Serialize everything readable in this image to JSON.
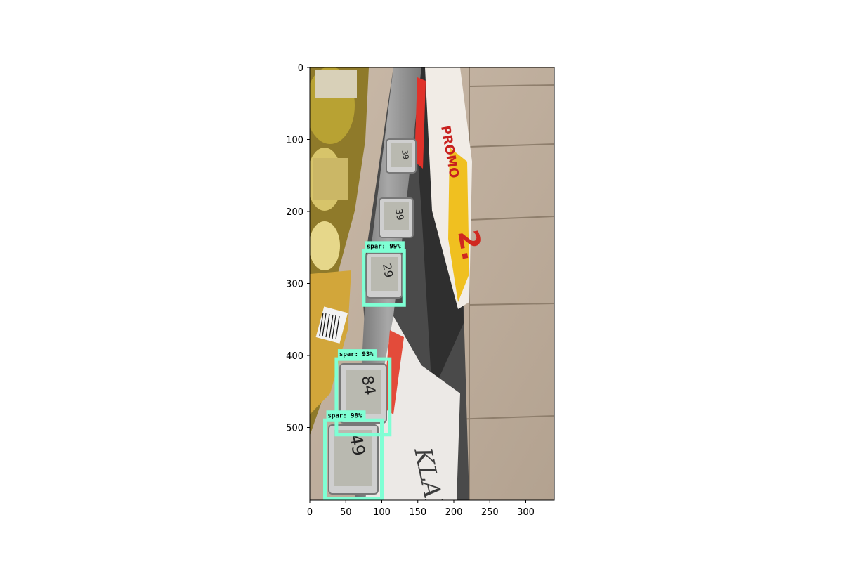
{
  "chart_data": {
    "type": "image",
    "x_ticks": [
      "0",
      "50",
      "100",
      "150",
      "200",
      "250",
      "300"
    ],
    "y_ticks": [
      "0",
      "100",
      "200",
      "300",
      "400",
      "500"
    ],
    "xlim": [
      0,
      340
    ],
    "ylim": [
      600,
      0
    ],
    "box_color": "#7fffd4",
    "detections": [
      {
        "label": "spar: 99%",
        "xmin": 75,
        "ymin": 255,
        "xmax": 131,
        "ymax": 330
      },
      {
        "label": "spar: 93%",
        "xmin": 37,
        "ymin": 405,
        "xmax": 111,
        "ymax": 510
      },
      {
        "label": "spar: 98%",
        "xmin": 21,
        "ymin": 490,
        "xmax": 100,
        "ymax": 599
      }
    ],
    "photo_labels": {
      "shelf_price_1": "39",
      "shelf_price_2": "39",
      "tag_price_1": "29",
      "tag_price_2": "84",
      "tag_price_3": "49"
    }
  }
}
